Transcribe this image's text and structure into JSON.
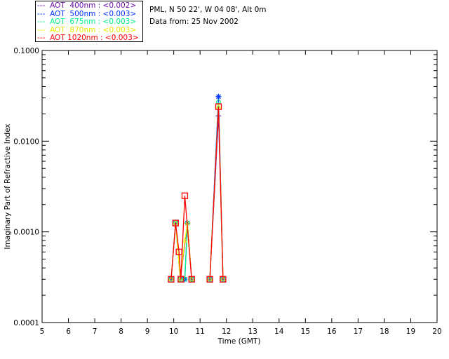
{
  "header": {
    "site": "PML, N 50 22', W 04 08', Alt 0m",
    "date": "Data from: 25 Nov 2002"
  },
  "chart_data": {
    "type": "line",
    "xlabel": "Time (GMT)",
    "ylabel": "Imaginary Part of Refractive Index",
    "xlim": [
      5,
      20
    ],
    "ylim": [
      0.0001,
      0.1
    ],
    "yscale": "log",
    "xticks": [
      "5",
      "6",
      "7",
      "8",
      "9",
      "10",
      "11",
      "12",
      "13",
      "14",
      "15",
      "16",
      "17",
      "18",
      "19",
      "20"
    ],
    "yticks": [
      "0.0001",
      "0.0010",
      "0.0100",
      "0.1000"
    ],
    "series": [
      {
        "name": "AOT  400nm : <0.002>",
        "legend_line": "---",
        "color": "#6a0dad",
        "points": [
          [
            9.9,
            0.0003
          ],
          [
            10.07,
            0.00125
          ],
          [
            10.25,
            0.0003
          ],
          [
            10.52,
            0.00125
          ],
          [
            10.68,
            0.0003
          ],
          [
            11.37,
            0.0003
          ],
          [
            11.7,
            0.019
          ],
          [
            11.87,
            0.0003
          ]
        ]
      },
      {
        "name": "AOT  500nm : <0.003>",
        "legend_line": "---",
        "color": "#0033ff",
        "points": [
          [
            9.9,
            0.0003
          ],
          [
            10.07,
            0.00125
          ],
          [
            10.25,
            0.0003
          ],
          [
            10.42,
            0.0003
          ],
          [
            10.52,
            0.00125
          ],
          [
            10.68,
            0.0003
          ],
          [
            11.37,
            0.0003
          ],
          [
            11.7,
            0.031
          ],
          [
            11.87,
            0.0003
          ]
        ]
      },
      {
        "name": "AOT  675nm : <0.003>",
        "legend_line": "---",
        "color": "#00ee88",
        "points": [
          [
            9.9,
            0.0003
          ],
          [
            10.07,
            0.00125
          ],
          [
            10.25,
            0.0003
          ],
          [
            10.42,
            0.0003
          ],
          [
            10.52,
            0.00125
          ],
          [
            10.68,
            0.0003
          ],
          [
            11.37,
            0.0003
          ],
          [
            11.7,
            0.027
          ],
          [
            11.87,
            0.0003
          ]
        ]
      },
      {
        "name": "AOT  870nm : <0.003>",
        "legend_line": "---",
        "color": "#ffff00",
        "points": [
          [
            9.9,
            0.0003
          ],
          [
            10.07,
            0.00125
          ],
          [
            10.25,
            0.0003
          ],
          [
            10.42,
            0.0008
          ],
          [
            10.52,
            0.00125
          ],
          [
            10.68,
            0.0003
          ],
          [
            11.37,
            0.0003
          ],
          [
            11.7,
            0.024
          ],
          [
            11.87,
            0.0003
          ]
        ]
      },
      {
        "name": "AOT 1020nm : <0.003>",
        "legend_line": "---",
        "color": "#ff0000",
        "points": [
          [
            9.9,
            0.0003
          ],
          [
            10.07,
            0.00125
          ],
          [
            10.2,
            0.0006
          ],
          [
            10.27,
            0.0003
          ],
          [
            10.42,
            0.0025
          ],
          [
            10.68,
            0.0003
          ],
          [
            11.37,
            0.0003
          ],
          [
            11.7,
            0.024
          ],
          [
            11.87,
            0.0003
          ]
        ]
      }
    ]
  }
}
